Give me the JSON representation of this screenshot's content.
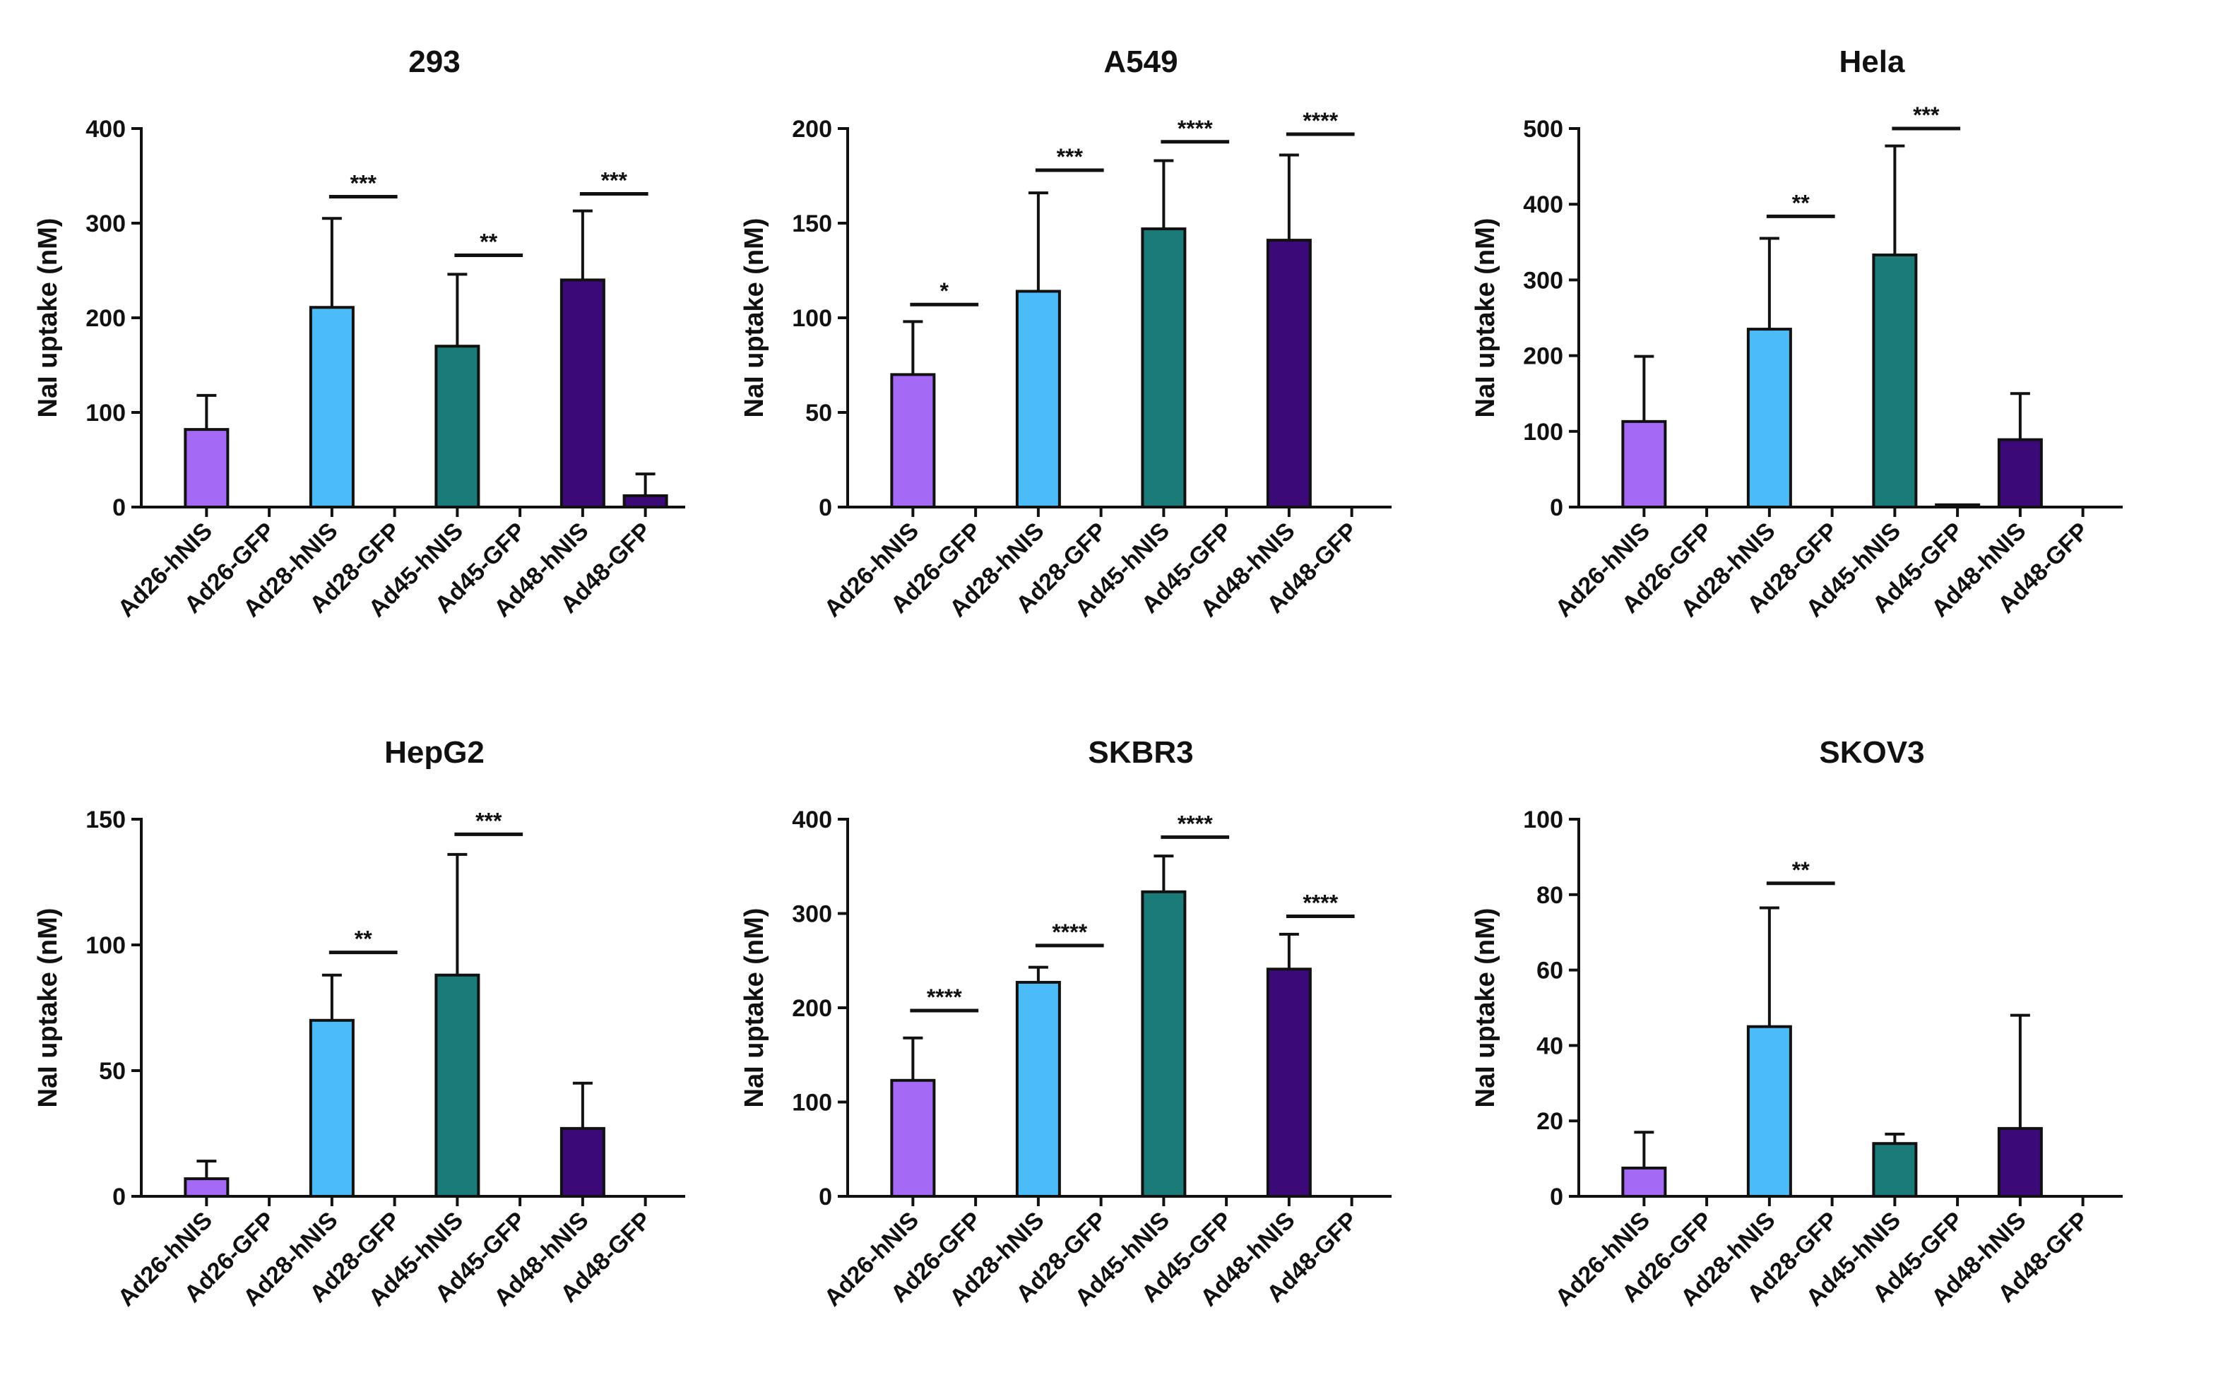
{
  "colors": {
    "hNIS_26": "#a46af5",
    "hNIS_28": "#4bbcf7",
    "hNIS_45": "#1b7b78",
    "hNIS_48": "#3c0a78",
    "axis": "#111111"
  },
  "chart_data": [
    {
      "type": "bar",
      "title": "293",
      "ylabel": "NaI uptake (nM)",
      "ylim": [
        0,
        400
      ],
      "yticks": [
        0,
        100,
        200,
        300,
        400
      ],
      "categories": [
        "Ad26-hNIS",
        "Ad26-GFP",
        "Ad28-hNIS",
        "Ad28-GFP",
        "Ad45-hNIS",
        "Ad45-GFP",
        "Ad48-hNIS",
        "Ad48-GFP"
      ],
      "values": [
        82,
        0,
        211,
        0,
        170,
        0,
        240,
        12
      ],
      "errors": [
        36,
        0,
        94,
        0,
        76,
        0,
        73,
        23
      ],
      "significance": [
        {
          "from": 2,
          "to": 3,
          "label": "***",
          "y": 328
        },
        {
          "from": 4,
          "to": 5,
          "label": "**",
          "y": 266
        },
        {
          "from": 6,
          "to": 7,
          "label": "***",
          "y": 331
        }
      ]
    },
    {
      "type": "bar",
      "title": "A549",
      "ylabel": "NaI uptake (nM)",
      "ylim": [
        0,
        200
      ],
      "yticks": [
        0,
        50,
        100,
        150,
        200
      ],
      "categories": [
        "Ad26-hNIS",
        "Ad26-GFP",
        "Ad28-hNIS",
        "Ad28-GFP",
        "Ad45-hNIS",
        "Ad45-GFP",
        "Ad48-hNIS",
        "Ad48-GFP"
      ],
      "values": [
        70,
        0,
        114,
        0,
        147,
        0,
        141,
        0
      ],
      "errors": [
        28,
        0,
        52,
        0,
        36,
        0,
        45,
        0
      ],
      "significance": [
        {
          "from": 0,
          "to": 1,
          "label": "*",
          "y": 107
        },
        {
          "from": 2,
          "to": 3,
          "label": "***",
          "y": 178
        },
        {
          "from": 4,
          "to": 5,
          "label": "****",
          "y": 193
        },
        {
          "from": 6,
          "to": 7,
          "label": "****",
          "y": 197
        }
      ]
    },
    {
      "type": "bar",
      "title": "Hela",
      "ylabel": "NaI uptake (nM)",
      "ylim": [
        0,
        500
      ],
      "yticks": [
        0,
        100,
        200,
        300,
        400,
        500
      ],
      "categories": [
        "Ad26-hNIS",
        "Ad26-GFP",
        "Ad28-hNIS",
        "Ad28-GFP",
        "Ad45-hNIS",
        "Ad45-GFP",
        "Ad48-hNIS",
        "Ad48-GFP"
      ],
      "values": [
        113,
        0,
        235,
        0,
        333,
        3,
        89,
        0
      ],
      "errors": [
        86,
        0,
        120,
        0,
        144,
        0,
        61,
        0
      ],
      "significance": [
        {
          "from": 2,
          "to": 3,
          "label": "**",
          "y": 384
        },
        {
          "from": 4,
          "to": 5,
          "label": "***",
          "y": 500
        }
      ]
    },
    {
      "type": "bar",
      "title": "HepG2",
      "ylabel": "NaI uptake (nM)",
      "ylim": [
        0,
        150
      ],
      "yticks": [
        0,
        50,
        100,
        150
      ],
      "categories": [
        "Ad26-hNIS",
        "Ad26-GFP",
        "Ad28-hNIS",
        "Ad28-GFP",
        "Ad45-hNIS",
        "Ad45-GFP",
        "Ad48-hNIS",
        "Ad48-GFP"
      ],
      "values": [
        7,
        0,
        70,
        0,
        88,
        0,
        27,
        0
      ],
      "errors": [
        7,
        0,
        18,
        0,
        48,
        0,
        18,
        0
      ],
      "significance": [
        {
          "from": 2,
          "to": 3,
          "label": "**",
          "y": 97
        },
        {
          "from": 4,
          "to": 5,
          "label": "***",
          "y": 144
        }
      ]
    },
    {
      "type": "bar",
      "title": "SKBR3",
      "ylabel": "NaI uptake (nM)",
      "ylim": [
        0,
        400
      ],
      "yticks": [
        0,
        100,
        200,
        300,
        400
      ],
      "categories": [
        "Ad26-hNIS",
        "Ad26-GFP",
        "Ad28-hNIS",
        "Ad28-GFP",
        "Ad45-hNIS",
        "Ad45-GFP",
        "Ad48-hNIS",
        "Ad48-GFP"
      ],
      "values": [
        123,
        0,
        227,
        0,
        323,
        0,
        241,
        0
      ],
      "errors": [
        45,
        0,
        16,
        0,
        38,
        0,
        37,
        0
      ],
      "significance": [
        {
          "from": 0,
          "to": 1,
          "label": "****",
          "y": 197
        },
        {
          "from": 2,
          "to": 3,
          "label": "****",
          "y": 266
        },
        {
          "from": 4,
          "to": 5,
          "label": "****",
          "y": 381
        },
        {
          "from": 6,
          "to": 7,
          "label": "****",
          "y": 297
        }
      ]
    },
    {
      "type": "bar",
      "title": "SKOV3",
      "ylabel": "NaI uptake (nM)",
      "ylim": [
        0,
        100
      ],
      "yticks": [
        0,
        20,
        40,
        60,
        80,
        100
      ],
      "categories": [
        "Ad26-hNIS",
        "Ad26-GFP",
        "Ad28-hNIS",
        "Ad28-GFP",
        "Ad45-hNIS",
        "Ad45-GFP",
        "Ad48-hNIS",
        "Ad48-GFP"
      ],
      "values": [
        7.5,
        0,
        45,
        0,
        14,
        0,
        18,
        0
      ],
      "errors": [
        9.5,
        0,
        31.5,
        0,
        2.5,
        0,
        30,
        0
      ],
      "significance": [
        {
          "from": 2,
          "to": 3,
          "label": "**",
          "y": 83
        }
      ]
    }
  ]
}
